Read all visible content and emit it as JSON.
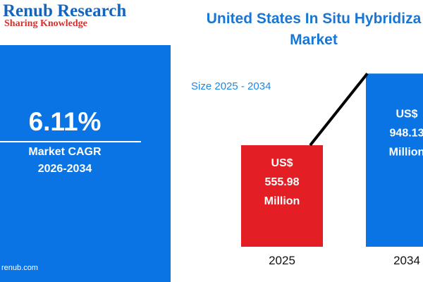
{
  "brand": {
    "name": "Renub Research",
    "tagline": "Sharing Knowledge",
    "website": "renub.com"
  },
  "title": {
    "line1": "United States In Situ Hybridiza",
    "line2": "Market"
  },
  "cagr": {
    "value": "6.11%",
    "label": "Market CAGR",
    "period": "2026-2034"
  },
  "subtitle": "Size 2025 - 2034",
  "colors": {
    "brand_blue": "#1565c0",
    "panel_blue": "#0a74e4",
    "bar_red": "#e31e24",
    "title_blue": "#1976d2"
  },
  "chart_data": {
    "type": "bar",
    "title": "United States In Situ Hybridiza Market",
    "subtitle": "Size 2025 - 2034",
    "categories": [
      "2025",
      "2034"
    ],
    "values": [
      555.98,
      948.13
    ],
    "unit": "US$ Million",
    "labels": [
      [
        "US$",
        "555.98",
        "Million"
      ],
      [
        "US$",
        "948.13",
        "Million"
      ]
    ],
    "bar_colors": [
      "#e31e24",
      "#0a74e4"
    ],
    "trend_line": true,
    "grid": false
  }
}
